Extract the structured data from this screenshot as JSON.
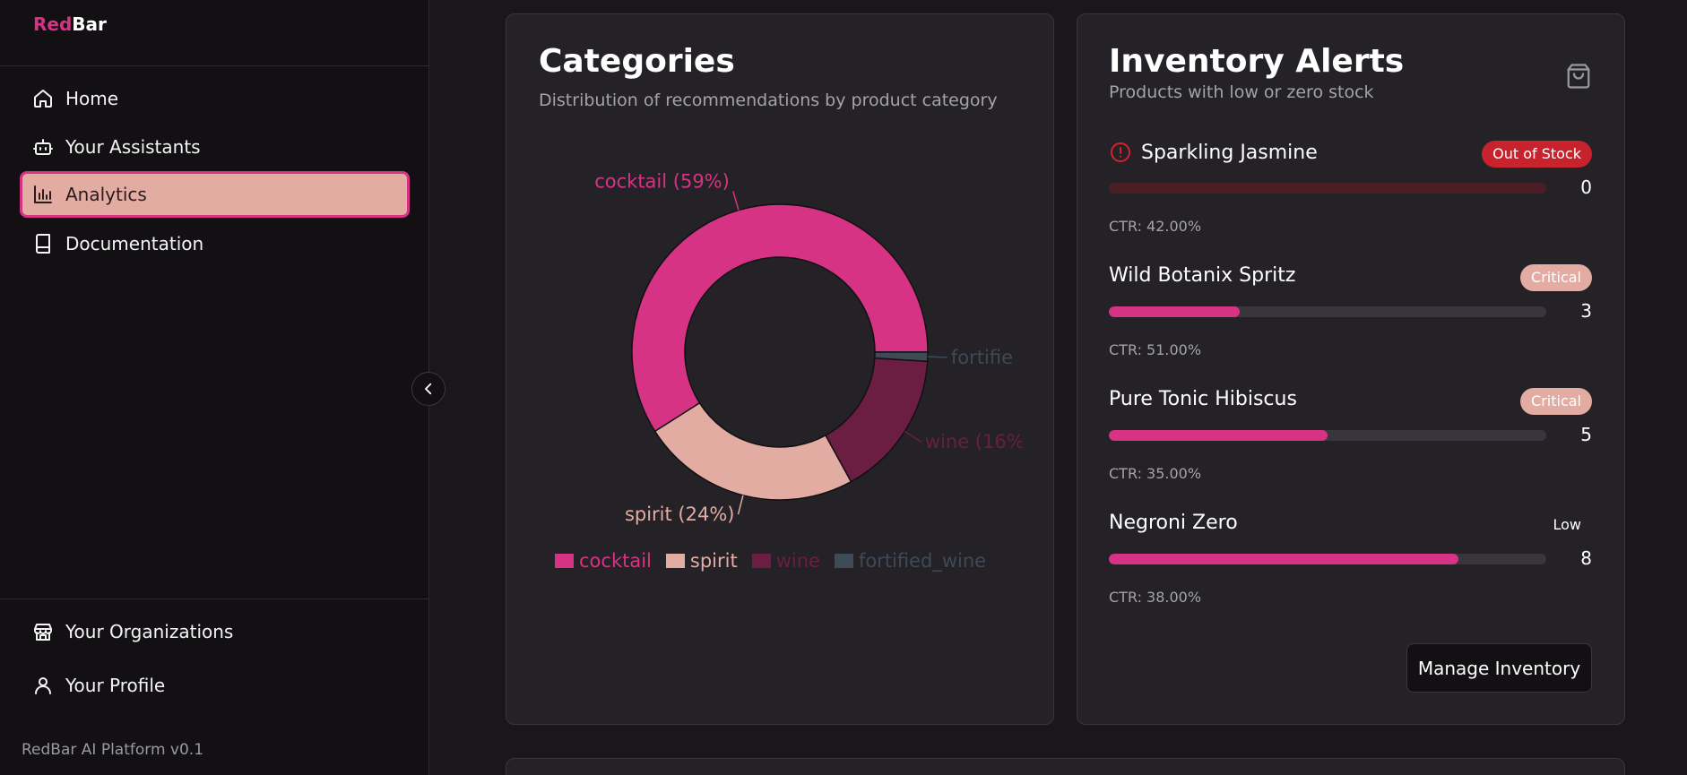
{
  "brand": {
    "part1": "Red",
    "part2": "Bar"
  },
  "nav": {
    "home": "Home",
    "assistants": "Your Assistants",
    "analytics": "Analytics",
    "documentation": "Documentation",
    "organizations": "Your Organizations",
    "profile": "Your Profile"
  },
  "footer": {
    "version": "RedBar AI Platform v0.1"
  },
  "colors": {
    "accent": "#d63384",
    "active_bg": "#e2aca3",
    "out_of_stock": "#c8232c",
    "wine": "#6b1d42",
    "fortified": "#3e4a56"
  },
  "categories_card": {
    "title": "Categories",
    "subtitle": "Distribution of recommendations by product category"
  },
  "chart_data": {
    "type": "pie",
    "title": "Categories",
    "categories": [
      "cocktail",
      "spirit",
      "wine",
      "fortified_wine"
    ],
    "values": [
      59,
      24,
      16,
      1
    ],
    "colors": [
      "#d63384",
      "#e2aca3",
      "#6b1d42",
      "#3e4a56"
    ],
    "slice_labels": [
      "cocktail (59%)",
      "spirit (24%)",
      "wine (16%",
      "fortifie"
    ],
    "legend_position": "bottom",
    "donut": true
  },
  "inventory": {
    "title": "Inventory Alerts",
    "subtitle": "Products with low or zero stock",
    "items": [
      {
        "name": "Sparkling Jasmine",
        "badge": "Out of Stock",
        "qty": "0",
        "level": 0,
        "ctr": "CTR: 42.00%"
      },
      {
        "name": "Wild Botanix Spritz",
        "badge": "Critical",
        "qty": "3",
        "level": 0.3,
        "ctr": "CTR: 51.00%"
      },
      {
        "name": "Pure Tonic Hibiscus",
        "badge": "Critical",
        "qty": "5",
        "level": 0.5,
        "ctr": "CTR: 35.00%"
      },
      {
        "name": "Negroni Zero",
        "badge": "Low",
        "qty": "8",
        "level": 0.8,
        "ctr": "CTR: 38.00%"
      }
    ],
    "manage_button": "Manage Inventory"
  }
}
